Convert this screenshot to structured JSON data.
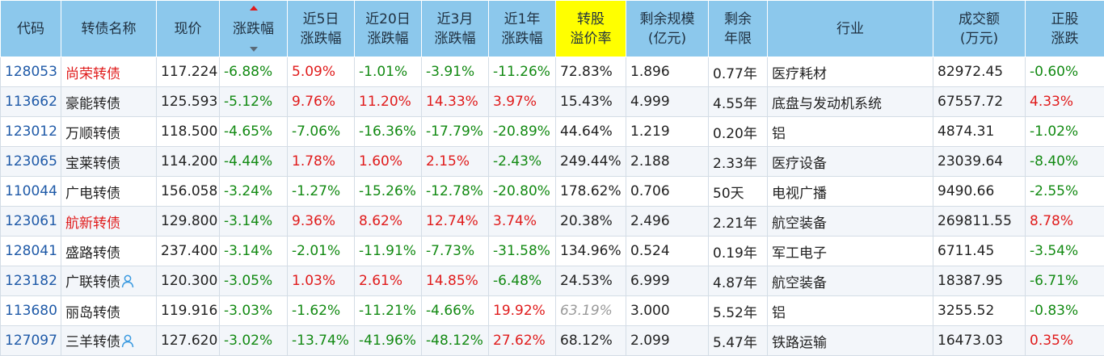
{
  "headers": [
    {
      "l1": "代码",
      "l2": ""
    },
    {
      "l1": "转债名称",
      "l2": ""
    },
    {
      "l1": "现价",
      "l2": ""
    },
    {
      "l1": "涨跌幅",
      "l2": ""
    },
    {
      "l1": "近5日",
      "l2": "涨跌幅"
    },
    {
      "l1": "近20日",
      "l2": "涨跌幅"
    },
    {
      "l1": "近3月",
      "l2": "涨跌幅"
    },
    {
      "l1": "近1年",
      "l2": "涨跌幅"
    },
    {
      "l1": "转股",
      "l2": "溢价率"
    },
    {
      "l1": "剩余规模",
      "l2": "(亿元)"
    },
    {
      "l1": "剩余",
      "l2": "年限"
    },
    {
      "l1": "行业",
      "l2": ""
    },
    {
      "l1": "成交额",
      "l2": "(万元)"
    },
    {
      "l1": "正股",
      "l2": "涨跌"
    }
  ],
  "sort": {
    "column": "涨跌幅",
    "direction": "ascending"
  },
  "colors": {
    "header_bg": "#8cc8ec",
    "highlight_header_bg": "#ffff00",
    "up": "#e01b1b",
    "down": "#138a13",
    "code": "#1f5aa8",
    "icon": "#3a9ae0"
  },
  "rows": [
    {
      "code": "128053",
      "name": "尚荣转债",
      "name_red": true,
      "icon": false,
      "price": "117.224",
      "chg": "-6.88%",
      "d5": "5.09%",
      "d20": "-1.01%",
      "m3": "-3.91%",
      "y1": "-11.26%",
      "prem": "72.83%",
      "prem_italic": false,
      "scale": "1.896",
      "years": "0.77年",
      "industry": "医疗耗材",
      "turnover": "82972.45",
      "stock": "-0.60%"
    },
    {
      "code": "113662",
      "name": "豪能转债",
      "name_red": false,
      "icon": false,
      "price": "125.593",
      "chg": "-5.12%",
      "d5": "9.76%",
      "d20": "11.20%",
      "m3": "14.33%",
      "y1": "3.97%",
      "prem": "15.43%",
      "prem_italic": false,
      "scale": "4.999",
      "years": "4.55年",
      "industry": "底盘与发动机系统",
      "turnover": "67557.72",
      "stock": "4.33%"
    },
    {
      "code": "123012",
      "name": "万顺转债",
      "name_red": false,
      "icon": false,
      "price": "118.500",
      "chg": "-4.65%",
      "d5": "-7.06%",
      "d20": "-16.36%",
      "m3": "-17.79%",
      "y1": "-20.89%",
      "prem": "44.64%",
      "prem_italic": false,
      "scale": "1.219",
      "years": "0.20年",
      "industry": "铝",
      "turnover": "4874.31",
      "stock": "-1.02%"
    },
    {
      "code": "123065",
      "name": "宝莱转债",
      "name_red": false,
      "icon": false,
      "price": "114.200",
      "chg": "-4.44%",
      "d5": "1.78%",
      "d20": "1.60%",
      "m3": "2.15%",
      "y1": "-2.43%",
      "prem": "249.44%",
      "prem_italic": false,
      "scale": "2.188",
      "years": "2.33年",
      "industry": "医疗设备",
      "turnover": "23039.64",
      "stock": "-8.40%"
    },
    {
      "code": "110044",
      "name": "广电转债",
      "name_red": false,
      "icon": false,
      "price": "156.058",
      "chg": "-3.24%",
      "d5": "-1.27%",
      "d20": "-15.26%",
      "m3": "-12.78%",
      "y1": "-20.80%",
      "prem": "178.62%",
      "prem_italic": false,
      "scale": "0.706",
      "years": "50天",
      "industry": "电视广播",
      "turnover": "9490.66",
      "stock": "-2.55%"
    },
    {
      "code": "123061",
      "name": "航新转债",
      "name_red": true,
      "icon": false,
      "price": "129.800",
      "chg": "-3.14%",
      "d5": "9.36%",
      "d20": "8.62%",
      "m3": "12.74%",
      "y1": "3.74%",
      "prem": "20.38%",
      "prem_italic": false,
      "scale": "2.496",
      "years": "2.21年",
      "industry": "航空装备",
      "turnover": "269811.55",
      "stock": "8.78%"
    },
    {
      "code": "128041",
      "name": "盛路转债",
      "name_red": false,
      "icon": false,
      "price": "237.400",
      "chg": "-3.14%",
      "d5": "-2.01%",
      "d20": "-11.91%",
      "m3": "-7.73%",
      "y1": "-31.58%",
      "prem": "134.96%",
      "prem_italic": false,
      "scale": "0.524",
      "years": "0.19年",
      "industry": "军工电子",
      "turnover": "6711.45",
      "stock": "-3.54%"
    },
    {
      "code": "123182",
      "name": "广联转债",
      "name_red": false,
      "icon": true,
      "price": "120.300",
      "chg": "-3.05%",
      "d5": "1.03%",
      "d20": "2.61%",
      "m3": "14.85%",
      "y1": "-6.48%",
      "prem": "24.53%",
      "prem_italic": false,
      "scale": "6.999",
      "years": "4.87年",
      "industry": "航空装备",
      "turnover": "18387.95",
      "stock": "-6.71%"
    },
    {
      "code": "113680",
      "name": "丽岛转债",
      "name_red": false,
      "icon": false,
      "price": "119.916",
      "chg": "-3.03%",
      "d5": "-1.62%",
      "d20": "-11.21%",
      "m3": "-4.66%",
      "y1": "19.92%",
      "prem": "63.19%",
      "prem_italic": true,
      "scale": "3.000",
      "years": "5.52年",
      "industry": "铝",
      "turnover": "3255.52",
      "stock": "-0.83%"
    },
    {
      "code": "127097",
      "name": "三羊转债",
      "name_red": false,
      "icon": true,
      "price": "127.620",
      "chg": "-3.02%",
      "d5": "-13.74%",
      "d20": "-41.96%",
      "m3": "-48.12%",
      "y1": "27.62%",
      "prem": "68.12%",
      "prem_italic": false,
      "scale": "2.099",
      "years": "5.47年",
      "industry": "铁路运输",
      "turnover": "16473.03",
      "stock": "0.35%"
    }
  ]
}
